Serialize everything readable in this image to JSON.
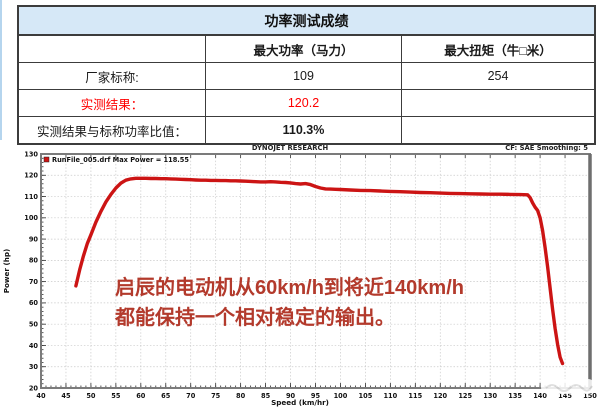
{
  "table": {
    "title": "功率测试成绩",
    "columns": [
      "",
      "最大功率（马力）",
      "最大扭矩（牛□米）"
    ],
    "rows": [
      {
        "label": "厂家标称:",
        "power": "109",
        "torque": "254"
      },
      {
        "label": "实测结果：",
        "power": "120.2",
        "torque": ""
      },
      {
        "label": "实测结果与标称功率比值：",
        "power": "110.3%",
        "torque": ""
      }
    ]
  },
  "chart_data": {
    "type": "line",
    "title": "DYNOJET RESEARCH",
    "corner_right": "CF: SAE  Smoothing: 5",
    "legend": "RunFile_005.drf Max Power = 118.55",
    "xlabel": "Speed (km/hr)",
    "ylabel": "Power (hp)",
    "xlim": [
      40,
      150
    ],
    "ylim": [
      20,
      130
    ],
    "xtick_step": 5,
    "ytick_step": 10,
    "grid": true,
    "legend_position": "top-left",
    "curve_color": "#cc1414",
    "annotation": {
      "line1": "启辰的电动机从60km/h到将近140km/h",
      "line2": "都能保持一个相对稳定的输出。",
      "color": "#b33a2c"
    },
    "series": [
      {
        "name": "RunFile_005.drf",
        "points": [
          [
            47,
            68
          ],
          [
            47.3,
            71
          ],
          [
            47.8,
            76
          ],
          [
            48.5,
            82
          ],
          [
            49.3,
            88
          ],
          [
            50,
            92
          ],
          [
            51,
            98
          ],
          [
            52,
            103
          ],
          [
            53,
            107.5
          ],
          [
            54,
            111
          ],
          [
            55,
            114
          ],
          [
            56,
            116.3
          ],
          [
            57,
            117.7
          ],
          [
            58,
            118.3
          ],
          [
            59,
            118.6
          ],
          [
            60,
            118.6
          ],
          [
            61,
            118.6
          ],
          [
            62,
            118.5
          ],
          [
            63,
            118.5
          ],
          [
            64,
            118.4
          ],
          [
            65,
            118.4
          ],
          [
            66,
            118.3
          ],
          [
            67,
            118.2
          ],
          [
            68,
            118.1
          ],
          [
            69,
            118
          ],
          [
            70,
            117.9
          ],
          [
            71,
            117.8
          ],
          [
            72,
            117.7
          ],
          [
            73,
            117.7
          ],
          [
            74,
            117.6
          ],
          [
            75,
            117.6
          ],
          [
            76,
            117.5
          ],
          [
            77,
            117.5
          ],
          [
            78,
            117.4
          ],
          [
            79,
            117.4
          ],
          [
            80,
            117.3
          ],
          [
            81,
            117.2
          ],
          [
            82,
            117.1
          ],
          [
            83,
            117
          ],
          [
            84,
            116.9
          ],
          [
            85,
            116.9
          ],
          [
            86,
            117
          ],
          [
            87,
            116.9
          ],
          [
            88,
            116.7
          ],
          [
            89,
            116.6
          ],
          [
            90,
            116.4
          ],
          [
            91,
            116.1
          ],
          [
            92,
            115.9
          ],
          [
            93,
            116.1
          ],
          [
            94,
            115.6
          ],
          [
            95,
            114.7
          ],
          [
            96,
            114
          ],
          [
            97,
            113.6
          ],
          [
            98,
            113.5
          ],
          [
            99,
            113.4
          ],
          [
            100,
            113.3
          ],
          [
            102,
            113.1
          ],
          [
            104,
            112.9
          ],
          [
            106,
            112.8
          ],
          [
            108,
            112.6
          ],
          [
            110,
            112.4
          ],
          [
            112,
            112.3
          ],
          [
            114,
            112.1
          ],
          [
            116,
            111.9
          ],
          [
            118,
            111.8
          ],
          [
            120,
            111.6
          ],
          [
            122,
            111.5
          ],
          [
            124,
            111.4
          ],
          [
            126,
            111.3
          ],
          [
            128,
            111.2
          ],
          [
            130,
            111.1
          ],
          [
            132,
            111.1
          ],
          [
            134,
            111
          ],
          [
            136,
            110.9
          ],
          [
            137.5,
            110.8
          ],
          [
            138,
            109.5
          ],
          [
            138.5,
            107
          ],
          [
            139,
            105
          ],
          [
            139.5,
            103.5
          ],
          [
            140,
            100
          ],
          [
            140.5,
            94
          ],
          [
            141,
            86
          ],
          [
            141.5,
            77
          ],
          [
            142,
            67
          ],
          [
            142.5,
            57
          ],
          [
            143,
            48
          ],
          [
            143.5,
            40.5
          ],
          [
            144,
            34.5
          ],
          [
            144.5,
            31.5
          ]
        ]
      }
    ]
  }
}
